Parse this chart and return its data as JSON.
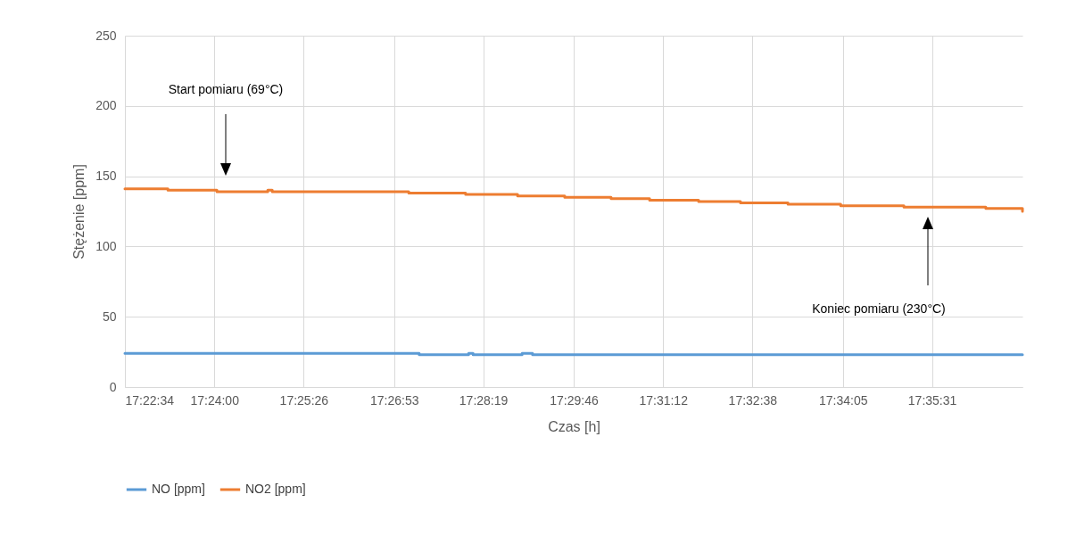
{
  "chart_data": {
    "type": "step",
    "xlabel": "Czas [h]",
    "ylabel": "Stężenie [ppm]",
    "xlim": [
      17.3761,
      17.6161
    ],
    "ylim": [
      0,
      250
    ],
    "yticks": [
      0,
      50,
      100,
      150,
      200,
      250
    ],
    "xticks": [
      {
        "value": 17.3761,
        "label": "17:22:34"
      },
      {
        "value": 17.4,
        "label": "17:24:00"
      },
      {
        "value": 17.4239,
        "label": "17:25:26"
      },
      {
        "value": 17.4481,
        "label": "17:26:53"
      },
      {
        "value": 17.4719,
        "label": "17:28:19"
      },
      {
        "value": 17.4961,
        "label": "17:29:46"
      },
      {
        "value": 17.52,
        "label": "17:31:12"
      },
      {
        "value": 17.5439,
        "label": "17:32:38"
      },
      {
        "value": 17.5681,
        "label": "17:34:05"
      },
      {
        "value": 17.5919,
        "label": "17:35:31"
      }
    ],
    "grid": true,
    "legend": "bottom",
    "series": [
      {
        "name": "NO [ppm]",
        "color": "#5b9bd5",
        "x": [
          17.3761,
          17.4548,
          17.468,
          17.4692,
          17.4823,
          17.4851,
          17.6161
        ],
        "values": [
          24,
          23,
          24,
          23,
          24,
          23,
          23
        ]
      },
      {
        "name": "NO2 [ppm]",
        "color": "#ed7d31",
        "x": [
          17.3761,
          17.3876,
          17.4007,
          17.4143,
          17.4155,
          17.4167,
          17.452,
          17.4672,
          17.4811,
          17.4937,
          17.5061,
          17.5164,
          17.5295,
          17.5407,
          17.5534,
          17.5675,
          17.5844,
          17.6063,
          17.6147,
          17.6161
        ],
        "values": [
          141,
          140,
          139,
          140,
          139,
          139,
          138,
          137,
          136,
          135,
          134,
          133,
          132,
          131,
          130,
          129,
          128,
          127,
          127,
          125
        ]
      }
    ],
    "annotations": [
      "Start pomiaru (69°C)",
      "Koniec pomiaru (230°C)"
    ]
  }
}
